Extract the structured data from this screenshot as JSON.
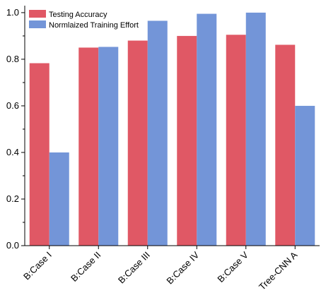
{
  "chart_data": {
    "type": "bar",
    "categories": [
      "B:Case I",
      "B:Case II",
      "B:Case III",
      "B:Case IV",
      "B:Case V",
      "Tree-CNN A"
    ],
    "series": [
      {
        "name": "Testing Accuracy",
        "color": "#e05865",
        "values": [
          0.783,
          0.85,
          0.88,
          0.9,
          0.905,
          0.862
        ]
      },
      {
        "name": "Normlaized Training Effort",
        "color": "#7395d8",
        "values": [
          0.4,
          0.853,
          0.965,
          0.995,
          1.0,
          0.6
        ]
      }
    ],
    "ylim": [
      0,
      1.03
    ],
    "yticks": [
      "0.0",
      "0.2",
      "0.4",
      "0.6",
      "0.8",
      "1.0"
    ],
    "legend_position": "top-left",
    "grid": false
  }
}
